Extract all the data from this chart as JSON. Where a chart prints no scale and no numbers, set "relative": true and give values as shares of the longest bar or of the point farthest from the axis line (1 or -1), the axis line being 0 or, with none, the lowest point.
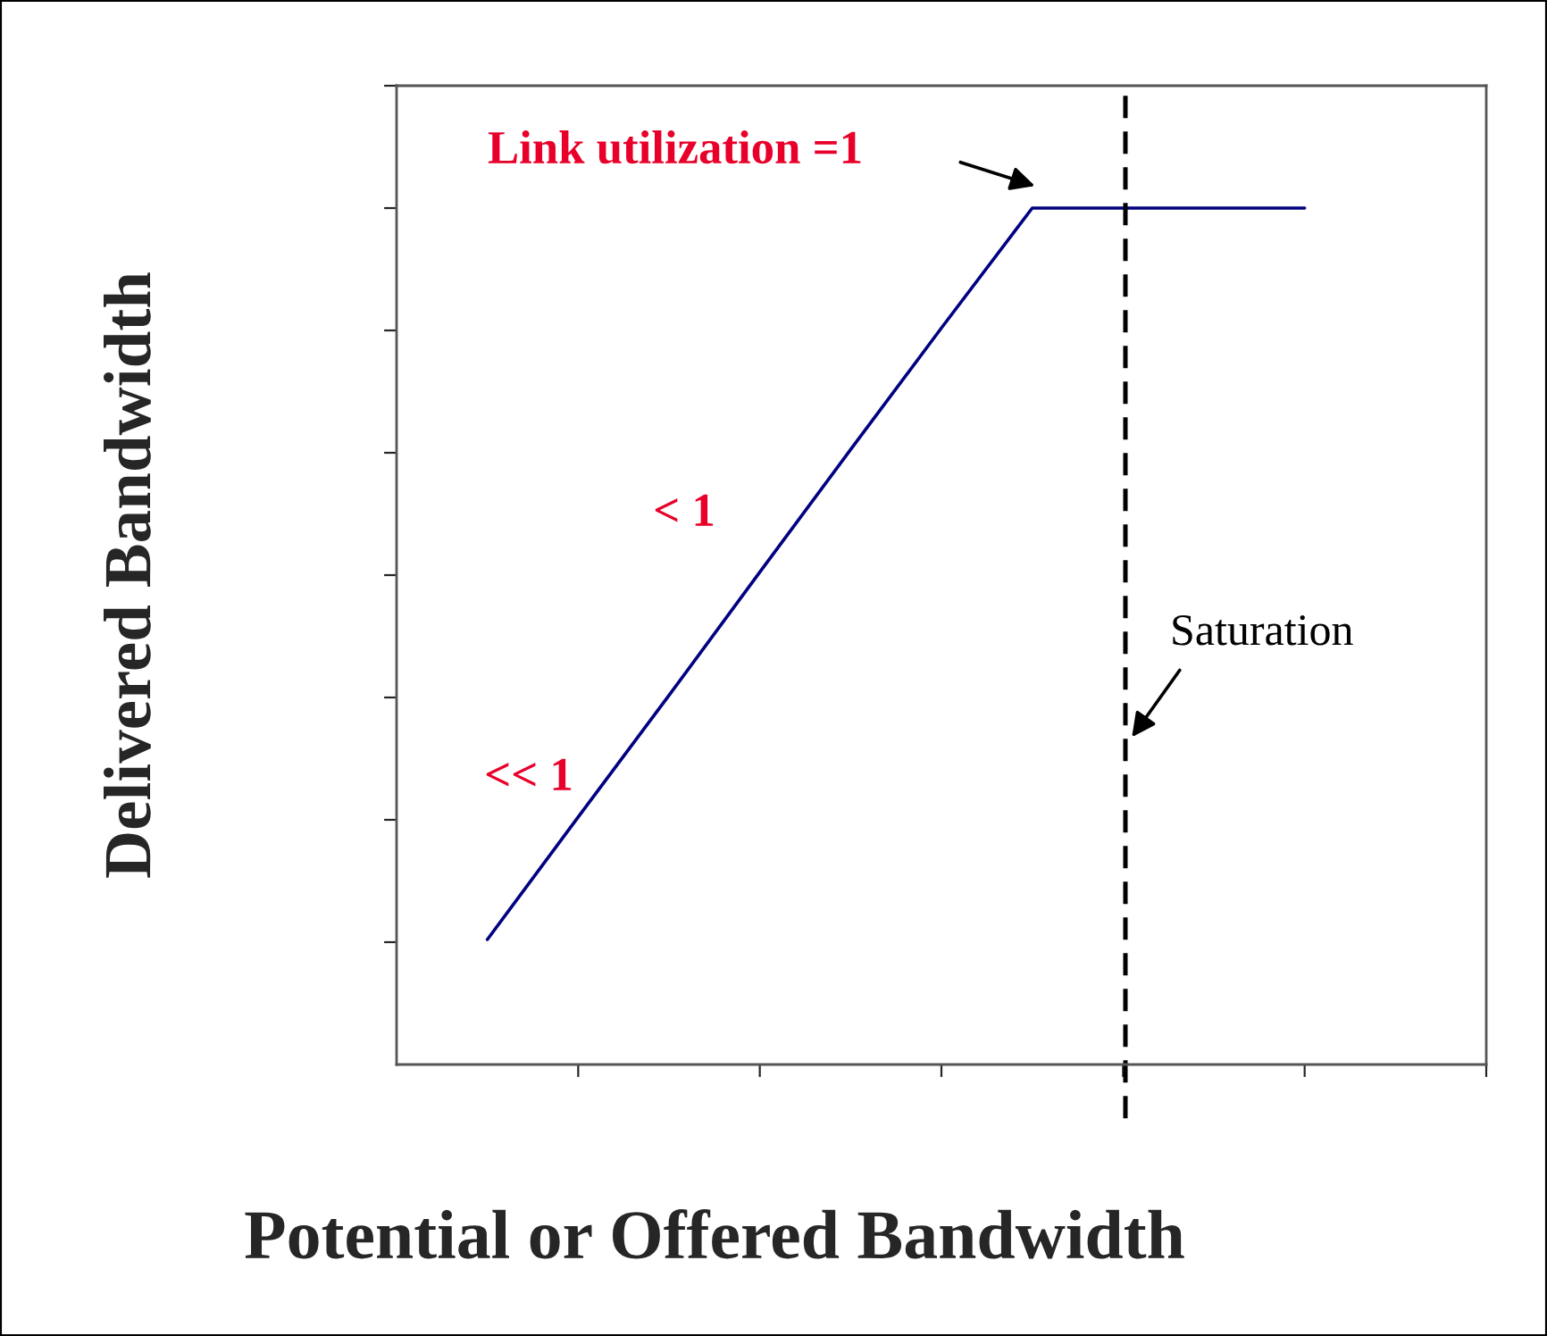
{
  "chart_data": {
    "type": "line",
    "relative": true,
    "xlabel": "Potential or Offered Bandwidth",
    "ylabel": "Delivered Bandwidth",
    "categories": [
      null,
      null,
      null,
      null,
      null,
      null,
      null,
      null,
      null,
      null
    ],
    "series": [
      {
        "color": "#000080",
        "values": [
          0.146,
          0.289,
          0.431,
          0.575,
          0.718,
          0.86,
          1,
          1,
          1,
          1
        ]
      }
    ],
    "annotations": [
      "Link utilization =1",
      "< 1",
      "<< 1",
      "Saturation"
    ],
    "grid": false,
    "legend": false,
    "marker": "none",
    "line_style": "solid"
  }
}
